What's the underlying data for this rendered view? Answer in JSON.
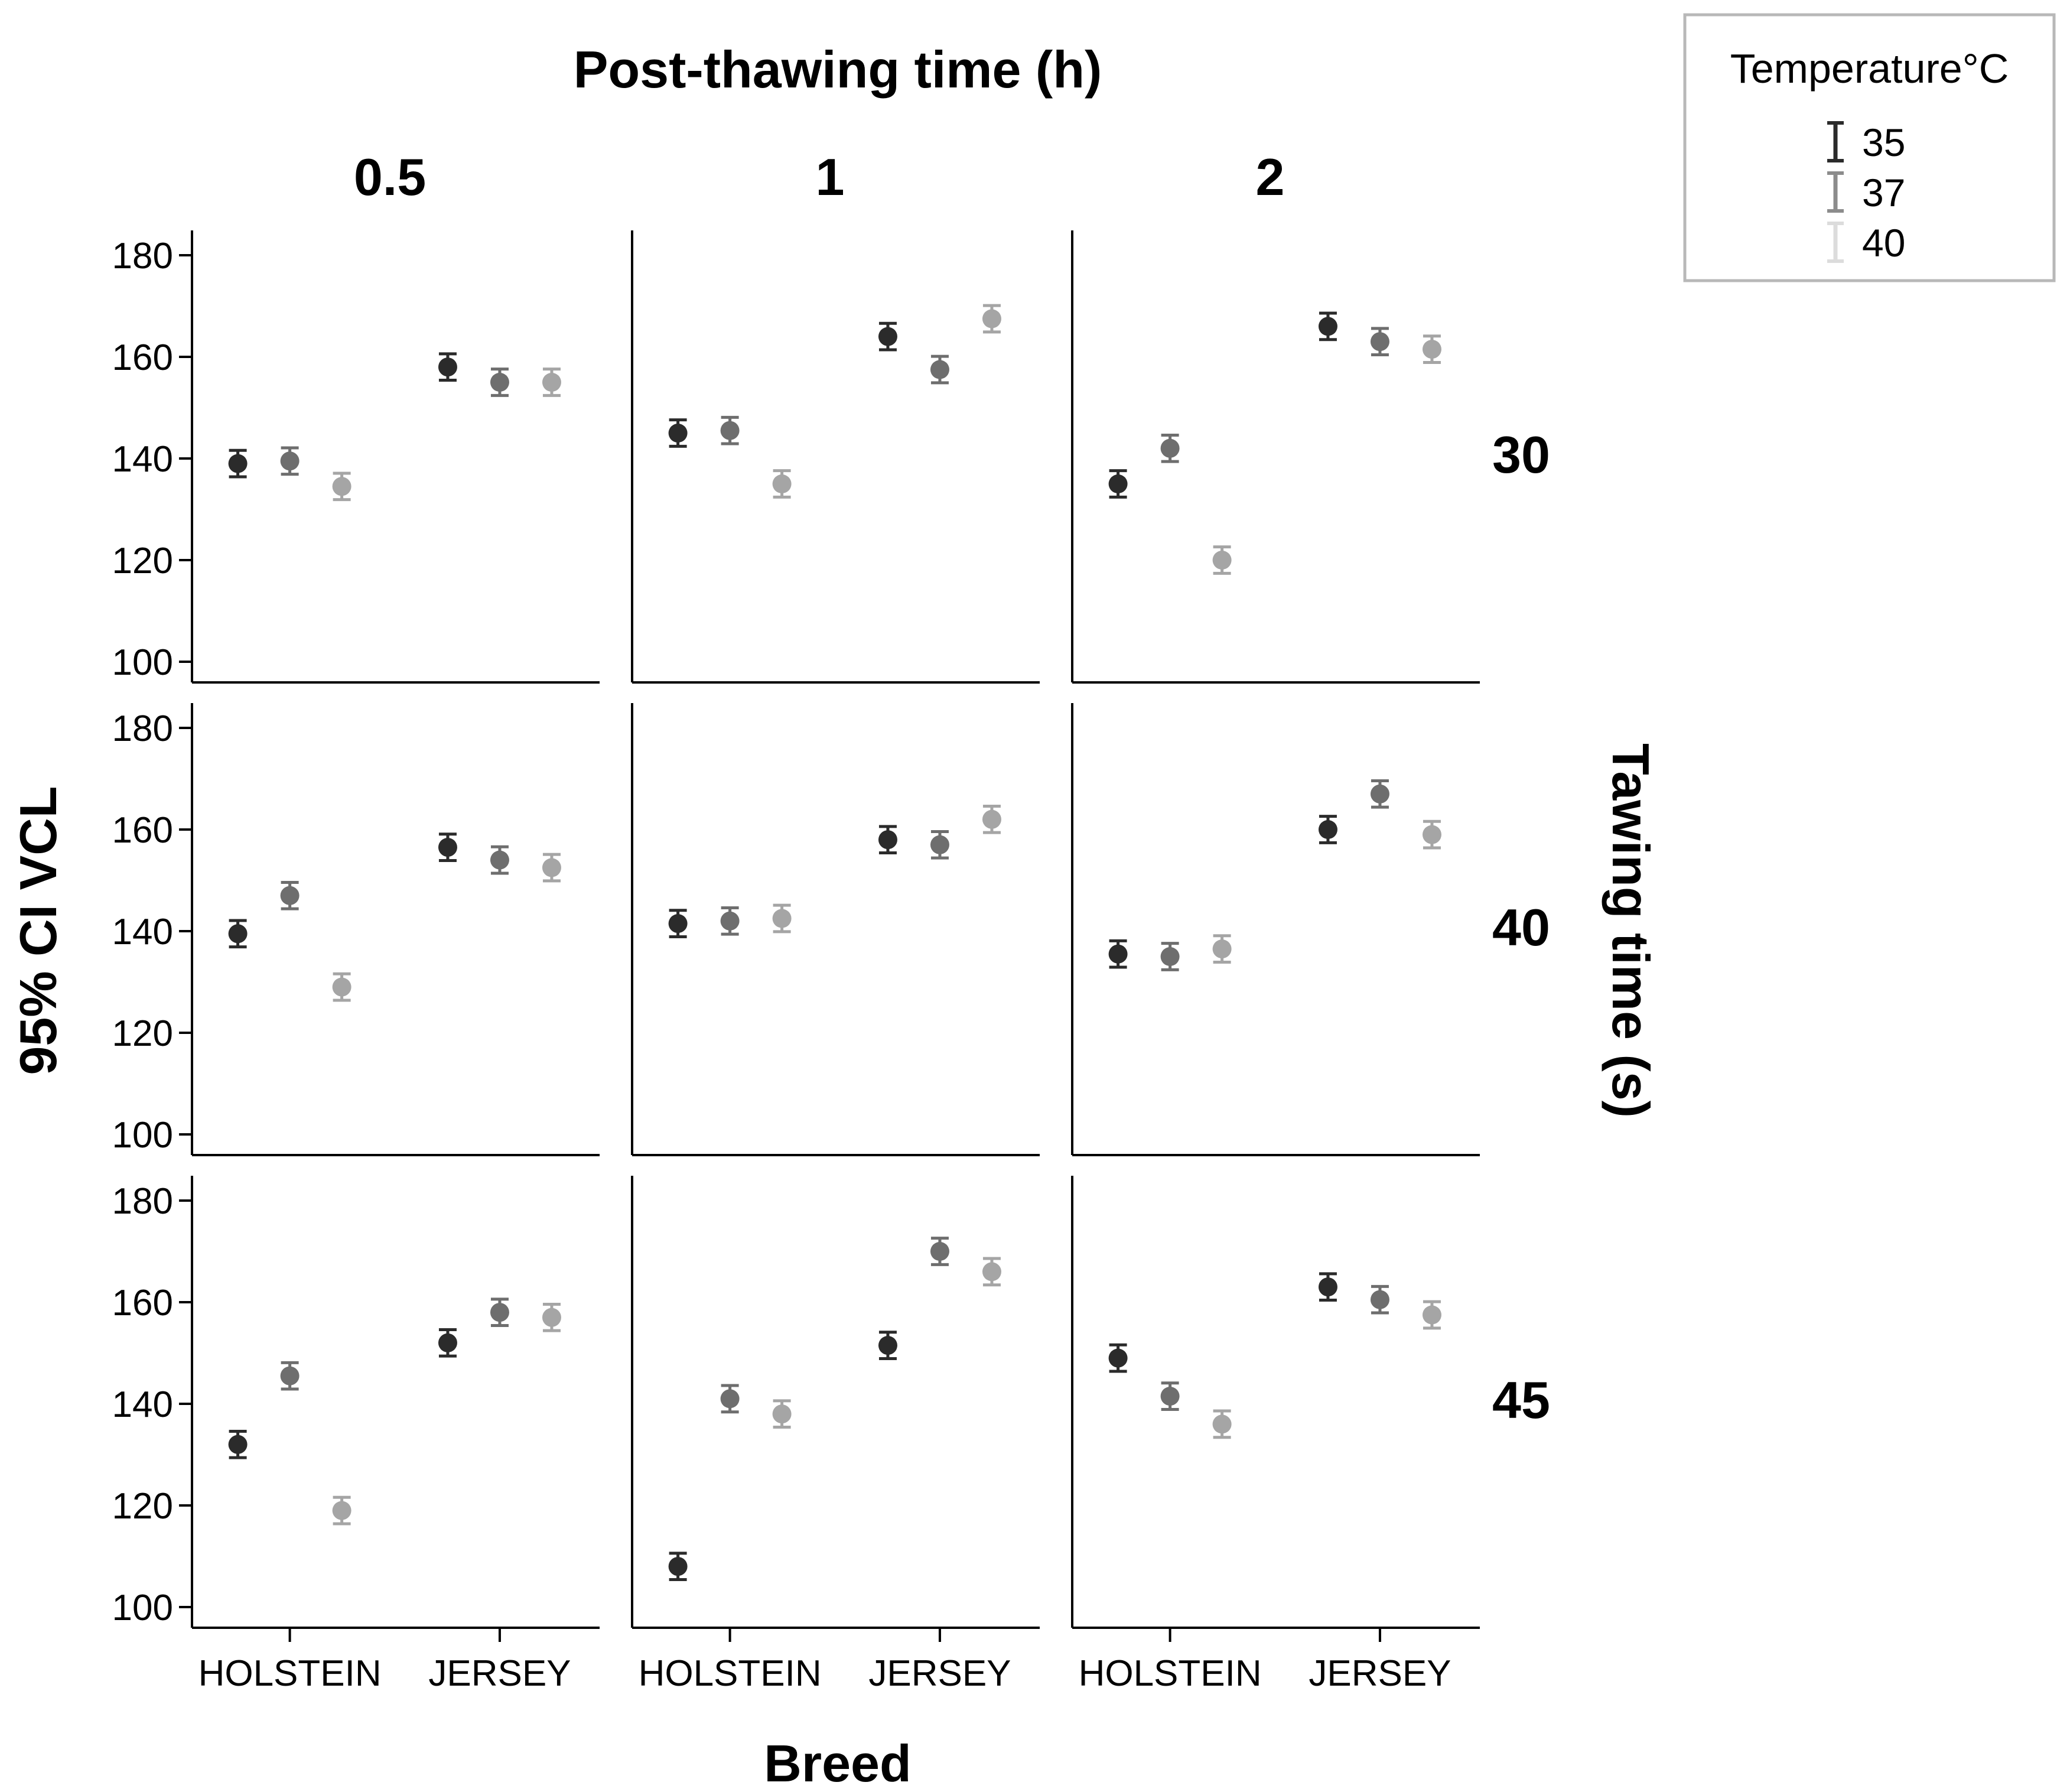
{
  "chart_data": {
    "type": "scatter",
    "subtype": "faceted error-bar plot (95% CI)",
    "title": "Post-thawing time (h)",
    "xlabel": "Breed",
    "ylabel": "95% CI VCL",
    "row_label": "Tawing time (s)",
    "columns": [
      "0.5",
      "1",
      "2"
    ],
    "rows": [
      "30",
      "40",
      "45"
    ],
    "categories": [
      "HOLSTEIN",
      "JERSEY"
    ],
    "ylim": [
      100,
      180
    ],
    "yticks": [
      "100",
      "120",
      "140",
      "160",
      "180"
    ],
    "legend": {
      "title": "Temperature°C",
      "position": "top-right",
      "entries": [
        "35",
        "37",
        "40"
      ]
    },
    "series_colors": [
      "#2b2b2b",
      "#6e6e6e",
      "#a5a5a5"
    ],
    "panels": [
      {
        "row": "30",
        "col": "0.5",
        "HOLSTEIN": [
          139,
          139.5,
          134.5
        ],
        "JERSEY": [
          158,
          155,
          155
        ]
      },
      {
        "row": "30",
        "col": "1",
        "HOLSTEIN": [
          145,
          145.5,
          135
        ],
        "JERSEY": [
          164,
          157.5,
          167.5
        ]
      },
      {
        "row": "30",
        "col": "2",
        "HOLSTEIN": [
          135,
          142,
          120
        ],
        "JERSEY": [
          166,
          163,
          161.5
        ]
      },
      {
        "row": "40",
        "col": "0.5",
        "HOLSTEIN": [
          139.5,
          147,
          129
        ],
        "JERSEY": [
          156.5,
          154,
          152.5
        ]
      },
      {
        "row": "40",
        "col": "1",
        "HOLSTEIN": [
          141.5,
          142,
          142.5
        ],
        "JERSEY": [
          158,
          157,
          162
        ]
      },
      {
        "row": "40",
        "col": "2",
        "HOLSTEIN": [
          135.5,
          135,
          136.5
        ],
        "JERSEY": [
          160,
          167,
          159
        ]
      },
      {
        "row": "45",
        "col": "0.5",
        "HOLSTEIN": [
          132,
          145.5,
          119
        ],
        "JERSEY": [
          152,
          158,
          157
        ]
      },
      {
        "row": "45",
        "col": "1",
        "HOLSTEIN": [
          108,
          141,
          138
        ],
        "JERSEY": [
          151.5,
          170,
          166
        ]
      },
      {
        "row": "45",
        "col": "2",
        "HOLSTEIN": [
          149,
          141.5,
          136
        ],
        "JERSEY": [
          163,
          160.5,
          157.5
        ]
      }
    ]
  }
}
